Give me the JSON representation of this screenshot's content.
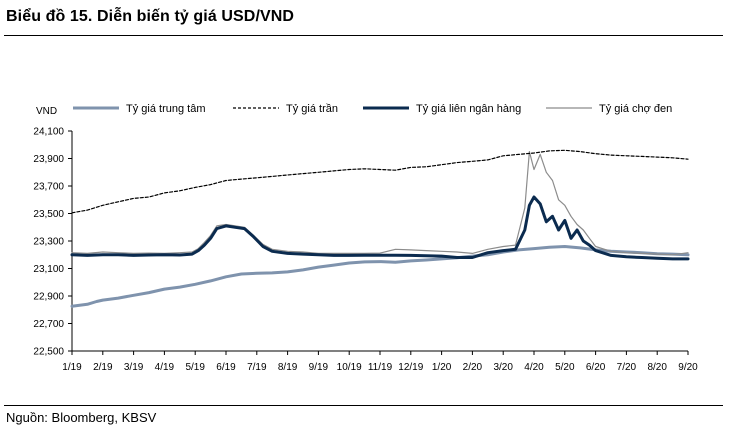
{
  "title": "Biểu đồ 15. Diễn biến tỷ giá USD/VND",
  "source": "Nguồn: Bloomberg, KBSV",
  "colors": {
    "central": "#7f93ad",
    "ceiling": "#000000",
    "interbank": "#0b2b4f",
    "blackmarket": "#8c8c8c"
  },
  "chart_data": {
    "type": "line",
    "ylabel": "VND",
    "ylim": [
      22500,
      24100
    ],
    "yticks": [
      22500,
      22700,
      22900,
      23100,
      23300,
      23500,
      23700,
      23900,
      24100
    ],
    "ytick_labels": [
      "22,500",
      "22,700",
      "22,900",
      "23,100",
      "23,300",
      "23,500",
      "23,700",
      "23,900",
      "24,100"
    ],
    "xlim": [
      0,
      20
    ],
    "x_tick_labels": [
      "1/19",
      "2/19",
      "3/19",
      "4/19",
      "5/19",
      "6/19",
      "7/19",
      "8/19",
      "9/19",
      "10/19",
      "11/19",
      "12/19",
      "1/20",
      "2/20",
      "3/20",
      "4/20",
      "5/20",
      "6/20",
      "7/20",
      "8/20",
      "9/20"
    ],
    "legend_position": "top",
    "series": [
      {
        "name": "Tỷ giá trung tâm",
        "style": "solid-thick",
        "color_key": "central",
        "points": [
          [
            0,
            22825
          ],
          [
            0.5,
            22840
          ],
          [
            0.8,
            22860
          ],
          [
            1,
            22870
          ],
          [
            1.5,
            22885
          ],
          [
            2,
            22905
          ],
          [
            2.5,
            22925
          ],
          [
            3,
            22950
          ],
          [
            3.5,
            22965
          ],
          [
            4,
            22985
          ],
          [
            4.5,
            23010
          ],
          [
            5,
            23040
          ],
          [
            5.5,
            23060
          ],
          [
            6,
            23065
          ],
          [
            6.5,
            23068
          ],
          [
            7,
            23075
          ],
          [
            7.5,
            23090
          ],
          [
            8,
            23110
          ],
          [
            8.5,
            23125
          ],
          [
            9,
            23140
          ],
          [
            9.5,
            23148
          ],
          [
            10,
            23150
          ],
          [
            10.5,
            23146
          ],
          [
            11,
            23155
          ],
          [
            11.5,
            23162
          ],
          [
            12,
            23170
          ],
          [
            12.5,
            23178
          ],
          [
            13,
            23190
          ],
          [
            13.5,
            23200
          ],
          [
            14,
            23220
          ],
          [
            14.5,
            23235
          ],
          [
            15,
            23245
          ],
          [
            15.5,
            23255
          ],
          [
            16,
            23260
          ],
          [
            16.5,
            23250
          ],
          [
            17,
            23235
          ],
          [
            17.5,
            23225
          ],
          [
            18,
            23220
          ],
          [
            18.5,
            23215
          ],
          [
            19,
            23208
          ],
          [
            19.5,
            23205
          ],
          [
            20,
            23200
          ]
        ]
      },
      {
        "name": "Tỷ giá trần",
        "style": "dashed",
        "color_key": "ceiling",
        "points": [
          [
            0,
            23505
          ],
          [
            0.5,
            23525
          ],
          [
            1,
            23560
          ],
          [
            1.5,
            23585
          ],
          [
            2,
            23610
          ],
          [
            2.5,
            23620
          ],
          [
            3,
            23650
          ],
          [
            3.5,
            23665
          ],
          [
            4,
            23690
          ],
          [
            4.5,
            23710
          ],
          [
            5,
            23740
          ],
          [
            5.5,
            23750
          ],
          [
            6,
            23760
          ],
          [
            6.5,
            23770
          ],
          [
            7,
            23780
          ],
          [
            7.5,
            23790
          ],
          [
            8,
            23800
          ],
          [
            8.5,
            23810
          ],
          [
            9,
            23820
          ],
          [
            9.5,
            23825
          ],
          [
            10,
            23820
          ],
          [
            10.5,
            23815
          ],
          [
            11,
            23835
          ],
          [
            11.5,
            23840
          ],
          [
            12,
            23855
          ],
          [
            12.5,
            23870
          ],
          [
            13,
            23880
          ],
          [
            13.5,
            23890
          ],
          [
            14,
            23920
          ],
          [
            14.5,
            23930
          ],
          [
            15,
            23940
          ],
          [
            15.5,
            23955
          ],
          [
            16,
            23960
          ],
          [
            16.5,
            23950
          ],
          [
            17,
            23935
          ],
          [
            17.5,
            23925
          ],
          [
            18,
            23920
          ],
          [
            18.5,
            23915
          ],
          [
            19,
            23910
          ],
          [
            19.5,
            23905
          ],
          [
            20,
            23895
          ]
        ]
      },
      {
        "name": "Tỷ giá liên ngân hàng",
        "style": "solid-thick",
        "color_key": "interbank",
        "points": [
          [
            0,
            23200
          ],
          [
            0.5,
            23195
          ],
          [
            1,
            23200
          ],
          [
            1.5,
            23200
          ],
          [
            2,
            23195
          ],
          [
            2.5,
            23198
          ],
          [
            3,
            23200
          ],
          [
            3.5,
            23198
          ],
          [
            3.9,
            23205
          ],
          [
            4.1,
            23230
          ],
          [
            4.3,
            23270
          ],
          [
            4.5,
            23320
          ],
          [
            4.7,
            23390
          ],
          [
            5,
            23410
          ],
          [
            5.3,
            23400
          ],
          [
            5.6,
            23390
          ],
          [
            5.9,
            23330
          ],
          [
            6.2,
            23260
          ],
          [
            6.5,
            23225
          ],
          [
            7,
            23210
          ],
          [
            7.5,
            23205
          ],
          [
            8,
            23200
          ],
          [
            8.5,
            23195
          ],
          [
            9,
            23195
          ],
          [
            9.5,
            23196
          ],
          [
            10,
            23196
          ],
          [
            10.5,
            23197
          ],
          [
            11,
            23195
          ],
          [
            11.5,
            23192
          ],
          [
            12,
            23190
          ],
          [
            12.5,
            23180
          ],
          [
            13,
            23180
          ],
          [
            13.5,
            23215
          ],
          [
            14,
            23230
          ],
          [
            14.4,
            23240
          ],
          [
            14.7,
            23380
          ],
          [
            14.85,
            23560
          ],
          [
            15,
            23620
          ],
          [
            15.2,
            23570
          ],
          [
            15.4,
            23440
          ],
          [
            15.6,
            23480
          ],
          [
            15.8,
            23380
          ],
          [
            16,
            23450
          ],
          [
            16.2,
            23320
          ],
          [
            16.4,
            23380
          ],
          [
            16.6,
            23300
          ],
          [
            16.8,
            23270
          ],
          [
            17,
            23230
          ],
          [
            17.5,
            23195
          ],
          [
            18,
            23185
          ],
          [
            18.5,
            23180
          ],
          [
            19,
            23175
          ],
          [
            19.5,
            23170
          ],
          [
            20,
            23170
          ]
        ]
      },
      {
        "name": "Tỷ giá chợ đen",
        "style": "solid-thin",
        "color_key": "blackmarket",
        "points": [
          [
            0,
            23215
          ],
          [
            0.5,
            23210
          ],
          [
            1,
            23220
          ],
          [
            1.5,
            23215
          ],
          [
            2,
            23210
          ],
          [
            2.5,
            23212
          ],
          [
            3,
            23210
          ],
          [
            3.5,
            23215
          ],
          [
            3.9,
            23220
          ],
          [
            4.1,
            23245
          ],
          [
            4.3,
            23290
          ],
          [
            4.5,
            23340
          ],
          [
            4.7,
            23410
          ],
          [
            5,
            23420
          ],
          [
            5.3,
            23410
          ],
          [
            5.6,
            23400
          ],
          [
            5.9,
            23340
          ],
          [
            6.2,
            23275
          ],
          [
            6.5,
            23240
          ],
          [
            7,
            23225
          ],
          [
            7.5,
            23220
          ],
          [
            8,
            23210
          ],
          [
            8.5,
            23210
          ],
          [
            9,
            23210
          ],
          [
            9.5,
            23210
          ],
          [
            10,
            23212
          ],
          [
            10.5,
            23240
          ],
          [
            11,
            23235
          ],
          [
            11.5,
            23230
          ],
          [
            12,
            23225
          ],
          [
            12.5,
            23220
          ],
          [
            13,
            23210
          ],
          [
            13.5,
            23240
          ],
          [
            14,
            23260
          ],
          [
            14.4,
            23270
          ],
          [
            14.7,
            23540
          ],
          [
            14.85,
            23950
          ],
          [
            15,
            23820
          ],
          [
            15.2,
            23930
          ],
          [
            15.4,
            23800
          ],
          [
            15.6,
            23740
          ],
          [
            15.8,
            23600
          ],
          [
            16,
            23560
          ],
          [
            16.2,
            23480
          ],
          [
            16.4,
            23420
          ],
          [
            16.6,
            23380
          ],
          [
            16.8,
            23320
          ],
          [
            17,
            23260
          ],
          [
            17.5,
            23225
          ],
          [
            18,
            23215
          ],
          [
            18.5,
            23210
          ],
          [
            19,
            23205
          ],
          [
            19.5,
            23200
          ],
          [
            20,
            23215
          ]
        ]
      }
    ]
  }
}
